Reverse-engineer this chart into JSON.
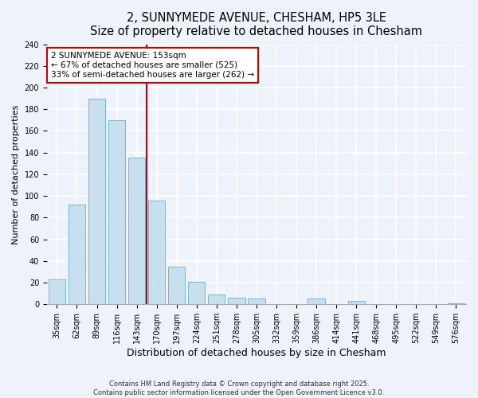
{
  "title": "2, SUNNYMEDE AVENUE, CHESHAM, HP5 3LE",
  "subtitle": "Size of property relative to detached houses in Chesham",
  "xlabel": "Distribution of detached houses by size in Chesham",
  "ylabel": "Number of detached properties",
  "bar_labels": [
    "35sqm",
    "62sqm",
    "89sqm",
    "116sqm",
    "143sqm",
    "170sqm",
    "197sqm",
    "224sqm",
    "251sqm",
    "278sqm",
    "305sqm",
    "332sqm",
    "359sqm",
    "386sqm",
    "414sqm",
    "441sqm",
    "468sqm",
    "495sqm",
    "522sqm",
    "549sqm",
    "576sqm"
  ],
  "bar_values": [
    23,
    92,
    190,
    170,
    135,
    96,
    35,
    21,
    9,
    6,
    5,
    0,
    0,
    5,
    0,
    3,
    0,
    0,
    0,
    0,
    1
  ],
  "bar_color": "#c8dff0",
  "bar_edge_color": "#7ab4d4",
  "vline_x": 4.5,
  "vline_color": "#cc0000",
  "annotation_title": "2 SUNNYMEDE AVENUE: 153sqm",
  "annotation_line1": "← 67% of detached houses are smaller (525)",
  "annotation_line2": "33% of semi-detached houses are larger (262) →",
  "annotation_box_color": "#ffffff",
  "annotation_box_edge_color": "#cc0000",
  "ylim": [
    0,
    240
  ],
  "yticks": [
    0,
    20,
    40,
    60,
    80,
    100,
    120,
    140,
    160,
    180,
    200,
    220,
    240
  ],
  "footer_line1": "Contains HM Land Registry data © Crown copyright and database right 2025.",
  "footer_line2": "Contains public sector information licensed under the Open Government Licence v3.0.",
  "bg_color": "#eef2fa",
  "grid_color": "#ffffff",
  "title_fontsize": 10.5,
  "subtitle_fontsize": 9,
  "tick_fontsize": 7,
  "xlabel_fontsize": 9,
  "ylabel_fontsize": 8,
  "ann_fontsize": 7.5
}
